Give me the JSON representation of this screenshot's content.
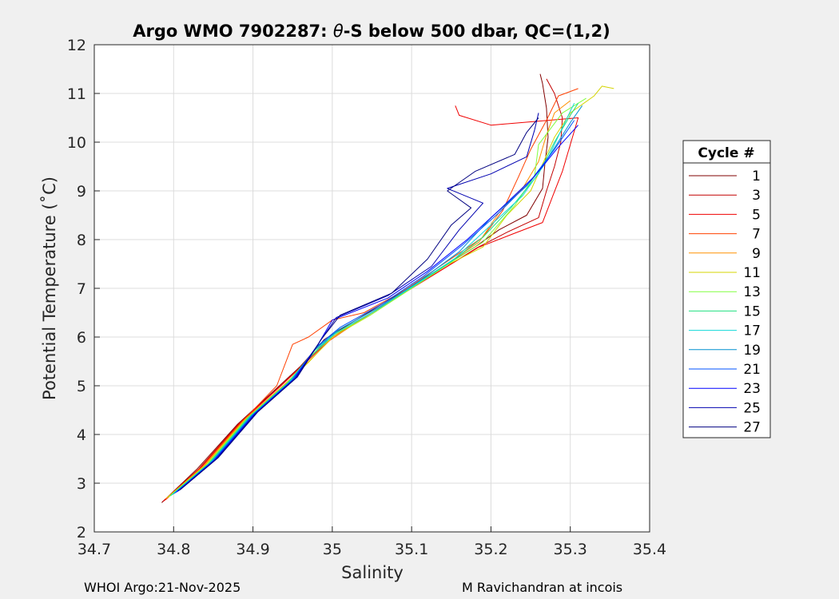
{
  "chart_data": {
    "type": "line",
    "title_prefix": "Argo WMO 7902287: ",
    "title_theta": "θ",
    "title_suffix": "-S below 500 dbar,  QC=(1,2)",
    "xlabel": "Salinity",
    "ylabel": "Potential Temperature (˚C)",
    "xlim": [
      34.7,
      35.4
    ],
    "ylim": [
      2,
      12
    ],
    "x_ticks": [
      {
        "value": 34.7,
        "label": "34.7"
      },
      {
        "value": 34.8,
        "label": "34.8"
      },
      {
        "value": 34.9,
        "label": "34.9"
      },
      {
        "value": 35.0,
        "label": "35"
      },
      {
        "value": 35.1,
        "label": "35.1"
      },
      {
        "value": 35.2,
        "label": "35.2"
      },
      {
        "value": 35.3,
        "label": "35.3"
      },
      {
        "value": 35.4,
        "label": "35.4"
      }
    ],
    "y_ticks": [
      {
        "value": 2,
        "label": "2"
      },
      {
        "value": 3,
        "label": "3"
      },
      {
        "value": 4,
        "label": "4"
      },
      {
        "value": 5,
        "label": "5"
      },
      {
        "value": 6,
        "label": "6"
      },
      {
        "value": 7,
        "label": "7"
      },
      {
        "value": 8,
        "label": "8"
      },
      {
        "value": 9,
        "label": "9"
      },
      {
        "value": 10,
        "label": "10"
      },
      {
        "value": 11,
        "label": "11"
      },
      {
        "value": 12,
        "label": "12"
      }
    ],
    "grid": true,
    "legend_title": "Cycle #",
    "legend_position": "outside-right",
    "series": [
      {
        "name": "1",
        "color": "#800000",
        "points": [
          [
            34.785,
            2.6
          ],
          [
            34.83,
            3.3
          ],
          [
            34.88,
            4.2
          ],
          [
            34.93,
            4.95
          ],
          [
            34.96,
            5.4
          ],
          [
            34.99,
            5.95
          ],
          [
            35.03,
            6.35
          ],
          [
            35.08,
            6.85
          ],
          [
            35.13,
            7.35
          ],
          [
            35.18,
            7.85
          ],
          [
            35.21,
            8.2
          ],
          [
            35.245,
            8.5
          ],
          [
            35.265,
            9.05
          ],
          [
            35.268,
            9.55
          ],
          [
            35.272,
            10.1
          ],
          [
            35.27,
            10.7
          ],
          [
            35.265,
            11.2
          ],
          [
            35.262,
            11.4
          ]
        ]
      },
      {
        "name": "3",
        "color": "#c30000",
        "points": [
          [
            34.786,
            2.62
          ],
          [
            34.832,
            3.3
          ],
          [
            34.882,
            4.22
          ],
          [
            34.932,
            4.96
          ],
          [
            34.962,
            5.42
          ],
          [
            34.992,
            5.92
          ],
          [
            35.032,
            6.32
          ],
          [
            35.082,
            6.82
          ],
          [
            35.132,
            7.32
          ],
          [
            35.182,
            7.83
          ],
          [
            35.22,
            8.15
          ],
          [
            35.26,
            8.45
          ],
          [
            35.27,
            9.0
          ],
          [
            35.28,
            9.5
          ],
          [
            35.288,
            10.0
          ],
          [
            35.29,
            10.5
          ],
          [
            35.28,
            11.0
          ],
          [
            35.27,
            11.3
          ]
        ]
      },
      {
        "name": "5",
        "color": "#f00000",
        "points": [
          [
            34.788,
            2.64
          ],
          [
            34.834,
            3.32
          ],
          [
            34.884,
            4.24
          ],
          [
            34.934,
            4.98
          ],
          [
            34.964,
            5.44
          ],
          [
            34.994,
            5.9
          ],
          [
            35.034,
            6.34
          ],
          [
            35.084,
            6.84
          ],
          [
            35.134,
            7.34
          ],
          [
            35.184,
            7.84
          ],
          [
            35.225,
            8.1
          ],
          [
            35.265,
            8.35
          ],
          [
            35.278,
            8.9
          ],
          [
            35.29,
            9.4
          ],
          [
            35.3,
            9.95
          ],
          [
            35.31,
            10.5
          ],
          [
            35.2,
            10.35
          ],
          [
            35.16,
            10.55
          ],
          [
            35.155,
            10.75
          ]
        ]
      },
      {
        "name": "7",
        "color": "#ff4000",
        "points": [
          [
            34.79,
            2.66
          ],
          [
            34.836,
            3.34
          ],
          [
            34.886,
            4.26
          ],
          [
            34.93,
            5.0
          ],
          [
            34.95,
            5.85
          ],
          [
            34.97,
            6.0
          ],
          [
            35.0,
            6.35
          ],
          [
            35.04,
            6.5
          ],
          [
            35.09,
            6.95
          ],
          [
            35.14,
            7.5
          ],
          [
            35.19,
            8.05
          ],
          [
            35.215,
            8.6
          ],
          [
            35.235,
            9.3
          ],
          [
            35.25,
            9.85
          ],
          [
            35.27,
            10.45
          ],
          [
            35.285,
            10.95
          ],
          [
            35.31,
            11.1
          ]
        ]
      },
      {
        "name": "9",
        "color": "#ff9000",
        "points": [
          [
            34.79,
            2.68
          ],
          [
            34.838,
            3.35
          ],
          [
            34.888,
            4.28
          ],
          [
            34.938,
            5.0
          ],
          [
            34.968,
            5.46
          ],
          [
            34.998,
            5.95
          ],
          [
            35.04,
            6.4
          ],
          [
            35.09,
            6.9
          ],
          [
            35.14,
            7.45
          ],
          [
            35.185,
            7.95
          ],
          [
            35.21,
            8.55
          ],
          [
            35.24,
            9.05
          ],
          [
            35.26,
            9.6
          ],
          [
            35.27,
            10.15
          ],
          [
            35.28,
            10.6
          ],
          [
            35.3,
            10.85
          ]
        ]
      },
      {
        "name": "11",
        "color": "#d4d400",
        "points": [
          [
            34.792,
            2.7
          ],
          [
            34.84,
            3.37
          ],
          [
            34.89,
            4.3
          ],
          [
            34.94,
            5.02
          ],
          [
            34.97,
            5.48
          ],
          [
            35.0,
            6.0
          ],
          [
            35.045,
            6.42
          ],
          [
            35.095,
            6.95
          ],
          [
            35.145,
            7.48
          ],
          [
            35.19,
            7.85
          ],
          [
            35.22,
            8.5
          ],
          [
            35.25,
            9.0
          ],
          [
            35.265,
            9.55
          ],
          [
            35.28,
            10.1
          ],
          [
            35.3,
            10.6
          ],
          [
            35.33,
            10.95
          ],
          [
            35.34,
            11.15
          ],
          [
            35.355,
            11.1
          ]
        ]
      },
      {
        "name": "13",
        "color": "#80ff40",
        "points": [
          [
            34.794,
            2.72
          ],
          [
            34.842,
            3.38
          ],
          [
            34.892,
            4.32
          ],
          [
            34.942,
            5.04
          ],
          [
            34.972,
            5.6
          ],
          [
            35.002,
            6.05
          ],
          [
            35.048,
            6.45
          ],
          [
            35.098,
            6.98
          ],
          [
            35.148,
            7.52
          ],
          [
            35.19,
            7.95
          ],
          [
            35.23,
            8.7
          ],
          [
            35.255,
            9.3
          ],
          [
            35.26,
            9.95
          ],
          [
            35.29,
            10.6
          ],
          [
            35.32,
            10.9
          ]
        ]
      },
      {
        "name": "15",
        "color": "#20e080",
        "points": [
          [
            34.796,
            2.74
          ],
          [
            34.844,
            3.4
          ],
          [
            34.894,
            4.34
          ],
          [
            34.944,
            5.06
          ],
          [
            34.974,
            5.62
          ],
          [
            35.004,
            6.08
          ],
          [
            35.05,
            6.5
          ],
          [
            35.1,
            7.02
          ],
          [
            35.15,
            7.55
          ],
          [
            35.19,
            8.05
          ],
          [
            35.225,
            8.65
          ],
          [
            35.26,
            9.35
          ],
          [
            35.28,
            10.0
          ],
          [
            35.3,
            10.55
          ],
          [
            35.31,
            10.8
          ]
        ]
      },
      {
        "name": "17",
        "color": "#10d8d8",
        "points": [
          [
            34.798,
            2.76
          ],
          [
            34.846,
            3.42
          ],
          [
            34.896,
            4.36
          ],
          [
            34.946,
            5.08
          ],
          [
            34.976,
            5.7
          ],
          [
            35.006,
            6.1
          ],
          [
            35.055,
            6.55
          ],
          [
            35.105,
            7.08
          ],
          [
            35.155,
            7.62
          ],
          [
            35.2,
            8.3
          ],
          [
            35.24,
            8.9
          ],
          [
            35.27,
            9.6
          ],
          [
            35.29,
            10.3
          ],
          [
            35.305,
            10.8
          ]
        ]
      },
      {
        "name": "19",
        "color": "#0090d0",
        "points": [
          [
            34.8,
            2.78
          ],
          [
            34.848,
            3.44
          ],
          [
            34.898,
            4.38
          ],
          [
            34.948,
            5.1
          ],
          [
            34.978,
            5.75
          ],
          [
            35.008,
            6.15
          ],
          [
            35.06,
            6.62
          ],
          [
            35.11,
            7.15
          ],
          [
            35.16,
            7.75
          ],
          [
            35.2,
            8.45
          ],
          [
            35.245,
            9.1
          ],
          [
            35.275,
            9.75
          ],
          [
            35.3,
            10.4
          ],
          [
            35.315,
            10.75
          ]
        ]
      },
      {
        "name": "21",
        "color": "#0050ff",
        "points": [
          [
            34.802,
            2.8
          ],
          [
            34.85,
            3.46
          ],
          [
            34.9,
            4.4
          ],
          [
            34.95,
            5.12
          ],
          [
            34.98,
            5.8
          ],
          [
            35.01,
            6.2
          ],
          [
            35.065,
            6.7
          ],
          [
            35.115,
            7.25
          ],
          [
            35.165,
            7.9
          ],
          [
            35.21,
            8.55
          ],
          [
            35.25,
            9.2
          ],
          [
            35.28,
            9.85
          ],
          [
            35.305,
            10.45
          ]
        ]
      },
      {
        "name": "23",
        "color": "#0000ff",
        "points": [
          [
            34.804,
            2.82
          ],
          [
            34.852,
            3.48
          ],
          [
            34.902,
            4.42
          ],
          [
            34.952,
            5.14
          ],
          [
            34.982,
            5.85
          ],
          [
            35.0,
            6.35
          ],
          [
            35.07,
            6.8
          ],
          [
            35.12,
            7.35
          ],
          [
            35.17,
            8.0
          ],
          [
            35.21,
            8.6
          ],
          [
            35.255,
            9.3
          ],
          [
            35.285,
            9.9
          ],
          [
            35.31,
            10.35
          ]
        ]
      },
      {
        "name": "25",
        "color": "#0000b0",
        "points": [
          [
            34.806,
            2.84
          ],
          [
            34.854,
            3.5
          ],
          [
            34.904,
            4.44
          ],
          [
            34.954,
            5.16
          ],
          [
            34.984,
            5.9
          ],
          [
            35.005,
            6.4
          ],
          [
            35.07,
            6.85
          ],
          [
            35.125,
            7.45
          ],
          [
            35.16,
            8.2
          ],
          [
            35.19,
            8.75
          ],
          [
            35.145,
            9.05
          ],
          [
            35.2,
            9.35
          ],
          [
            35.245,
            9.7
          ],
          [
            35.255,
            10.25
          ],
          [
            35.26,
            10.6
          ]
        ]
      },
      {
        "name": "27",
        "color": "#000080",
        "points": [
          [
            34.808,
            2.86
          ],
          [
            34.856,
            3.52
          ],
          [
            34.906,
            4.46
          ],
          [
            34.956,
            5.18
          ],
          [
            34.986,
            5.95
          ],
          [
            35.01,
            6.45
          ],
          [
            35.075,
            6.9
          ],
          [
            35.12,
            7.6
          ],
          [
            35.15,
            8.3
          ],
          [
            35.175,
            8.65
          ],
          [
            35.145,
            9.0
          ],
          [
            35.18,
            9.4
          ],
          [
            35.23,
            9.75
          ],
          [
            35.245,
            10.2
          ],
          [
            35.26,
            10.5
          ]
        ]
      }
    ]
  },
  "footer": {
    "left": "WHOI Argo:21-Nov-2025",
    "right": "M Ravichandran at incois"
  }
}
